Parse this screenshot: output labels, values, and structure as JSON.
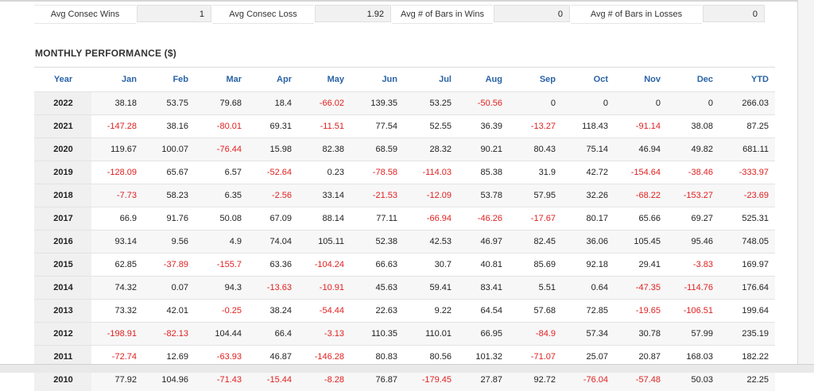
{
  "stats": [
    {
      "label": "Avg Consec Wins",
      "value": "1"
    },
    {
      "label": "Avg Consec Loss",
      "value": "1.92"
    },
    {
      "label": "Avg # of Bars in Wins",
      "value": "0"
    },
    {
      "label": "Avg # of Bars in Losses",
      "value": "0"
    }
  ],
  "section_title": "MONTHLY PERFORMANCE ($)",
  "columns": [
    "Year",
    "Jan",
    "Feb",
    "Mar",
    "Apr",
    "May",
    "Jun",
    "Jul",
    "Aug",
    "Sep",
    "Oct",
    "Nov",
    "Dec",
    "YTD"
  ],
  "rows": [
    {
      "year": "2022",
      "values": [
        "38.18",
        "53.75",
        "79.68",
        "18.4",
        "-66.02",
        "139.35",
        "53.25",
        "-50.56",
        "0",
        "0",
        "0",
        "0",
        "266.03"
      ]
    },
    {
      "year": "2021",
      "values": [
        "-147.28",
        "38.16",
        "-80.01",
        "69.31",
        "-11.51",
        "77.54",
        "52.55",
        "36.39",
        "-13.27",
        "118.43",
        "-91.14",
        "38.08",
        "87.25"
      ]
    },
    {
      "year": "2020",
      "values": [
        "119.67",
        "100.07",
        "-76.44",
        "15.98",
        "82.38",
        "68.59",
        "28.32",
        "90.21",
        "80.43",
        "75.14",
        "46.94",
        "49.82",
        "681.11"
      ]
    },
    {
      "year": "2019",
      "values": [
        "-128.09",
        "65.67",
        "6.57",
        "-52.64",
        "0.23",
        "-78.58",
        "-114.03",
        "85.38",
        "31.9",
        "42.72",
        "-154.64",
        "-38.46",
        "-333.97"
      ]
    },
    {
      "year": "2018",
      "values": [
        "-7.73",
        "58.23",
        "6.35",
        "-2.56",
        "33.14",
        "-21.53",
        "-12.09",
        "53.78",
        "57.95",
        "32.26",
        "-68.22",
        "-153.27",
        "-23.69"
      ]
    },
    {
      "year": "2017",
      "values": [
        "66.9",
        "91.76",
        "50.08",
        "67.09",
        "88.14",
        "77.11",
        "-66.94",
        "-46.26",
        "-17.67",
        "80.17",
        "65.66",
        "69.27",
        "525.31"
      ]
    },
    {
      "year": "2016",
      "values": [
        "93.14",
        "9.56",
        "4.9",
        "74.04",
        "105.11",
        "52.38",
        "42.53",
        "46.97",
        "82.45",
        "36.06",
        "105.45",
        "95.46",
        "748.05"
      ]
    },
    {
      "year": "2015",
      "values": [
        "62.85",
        "-37.89",
        "-155.7",
        "63.36",
        "-104.24",
        "66.63",
        "30.7",
        "40.81",
        "85.69",
        "92.18",
        "29.41",
        "-3.83",
        "169.97"
      ]
    },
    {
      "year": "2014",
      "values": [
        "74.32",
        "0.07",
        "94.3",
        "-13.63",
        "-10.91",
        "45.63",
        "59.41",
        "83.41",
        "5.51",
        "0.64",
        "-47.35",
        "-114.76",
        "176.64"
      ]
    },
    {
      "year": "2013",
      "values": [
        "73.32",
        "42.01",
        "-0.25",
        "38.24",
        "-54.44",
        "22.63",
        "9.22",
        "64.54",
        "57.68",
        "72.85",
        "-19.65",
        "-106.51",
        "199.64"
      ]
    },
    {
      "year": "2012",
      "values": [
        "-198.91",
        "-82.13",
        "104.44",
        "66.4",
        "-3.13",
        "110.35",
        "110.01",
        "66.95",
        "-84.9",
        "57.34",
        "30.78",
        "57.99",
        "235.19"
      ]
    },
    {
      "year": "2011",
      "values": [
        "-72.74",
        "12.69",
        "-63.93",
        "46.87",
        "-146.28",
        "80.83",
        "80.56",
        "101.32",
        "-71.07",
        "25.07",
        "20.87",
        "168.03",
        "182.22"
      ]
    },
    {
      "year": "2010",
      "values": [
        "77.92",
        "104.96",
        "-71.43",
        "-15.44",
        "-8.28",
        "76.87",
        "-179.45",
        "27.87",
        "92.72",
        "-76.04",
        "-57.48",
        "50.03",
        "22.25"
      ]
    }
  ],
  "colors": {
    "header_text": "#2a63a6",
    "negative": "#e02020",
    "year_bg": "#f0f0f0"
  }
}
